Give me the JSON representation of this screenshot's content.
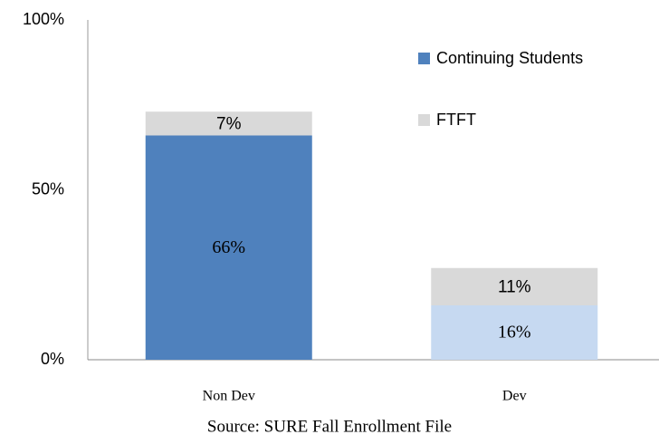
{
  "chart_data": {
    "type": "stacked-bar",
    "categories": [
      "Non Dev",
      "Dev"
    ],
    "series": [
      {
        "name": "Continuing Students",
        "color": "#4f81bd",
        "colors": [
          "#4f81bd",
          "#c6d9f1"
        ],
        "values": [
          66,
          16
        ],
        "value_labels": [
          "66%",
          "16%"
        ]
      },
      {
        "name": "FTFT",
        "color": "#d9d9d9",
        "values": [
          7,
          11
        ],
        "value_labels": [
          "7%",
          "11%"
        ]
      }
    ],
    "ylim": [
      0,
      100
    ],
    "yticks": [
      {
        "value": 0,
        "label": "0%"
      },
      {
        "value": 50,
        "label": "50%"
      },
      {
        "value": 100,
        "label": "100%"
      }
    ],
    "grid": false,
    "legend": "top-right",
    "source": "Source: SURE Fall Enrollment File"
  }
}
